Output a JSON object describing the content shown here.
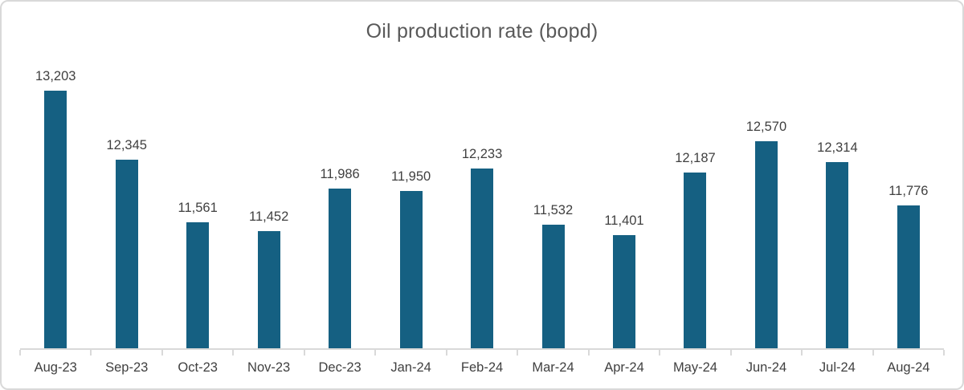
{
  "title": "Oil production rate (bopd)",
  "chart_data": {
    "type": "bar",
    "title": "Oil production rate (bopd)",
    "xlabel": "",
    "ylabel": "",
    "categories": [
      "Aug-23",
      "Sep-23",
      "Oct-23",
      "Nov-23",
      "Dec-23",
      "Jan-24",
      "Feb-24",
      "Mar-24",
      "Apr-24",
      "May-24",
      "Jun-24",
      "Jul-24",
      "Aug-24"
    ],
    "values": [
      13203,
      12345,
      11561,
      11452,
      11986,
      11950,
      12233,
      11532,
      11401,
      12187,
      12570,
      12314,
      11776
    ],
    "value_labels": [
      "13,203",
      "12,345",
      "11,561",
      "11,452",
      "11,986",
      "11,950",
      "12,233",
      "11,532",
      "11,401",
      "12,187",
      "12,570",
      "12,314",
      "11,776"
    ],
    "ylim": [
      10000,
      13400
    ],
    "grid": false,
    "legend": false,
    "data_labels_position": "above-bars",
    "bar_color": "#156082"
  },
  "colors": {
    "bar": "#156082",
    "title_text": "#595959",
    "label_text": "#404040",
    "axis_line": "#d9d9d9",
    "border": "#d9d9d9",
    "background": "#ffffff"
  }
}
